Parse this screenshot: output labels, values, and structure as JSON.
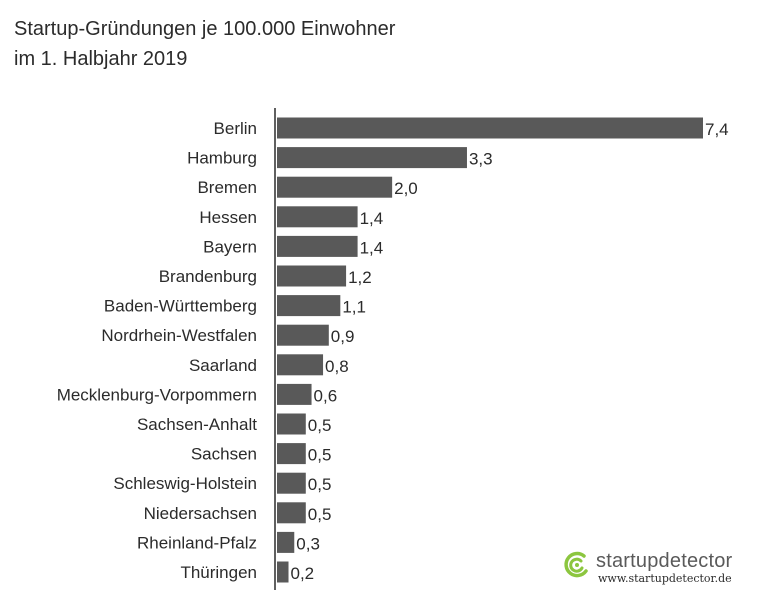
{
  "chart_data": {
    "type": "bar",
    "orientation": "horizontal",
    "title": "Startup-Gründungen je 100.000 Einwohner im 1. Halbjahr 2019",
    "title_lines": [
      "Startup-Gründungen je 100.000 Einwohner",
      "im 1. Halbjahr 2019"
    ],
    "categories": [
      "Berlin",
      "Hamburg",
      "Bremen",
      "Hessen",
      "Bayern",
      "Brandenburg",
      "Baden-Württemberg",
      "Nordrhein-Westfalen",
      "Saarland",
      "Mecklenburg-Vorpommern",
      "Sachsen-Anhalt",
      "Sachsen",
      "Schleswig-Holstein",
      "Niedersachsen",
      "Rheinland-Pfalz",
      "Thüringen"
    ],
    "values": [
      7.4,
      3.3,
      2.0,
      1.4,
      1.4,
      1.2,
      1.1,
      0.9,
      0.8,
      0.6,
      0.5,
      0.5,
      0.5,
      0.5,
      0.3,
      0.2
    ],
    "value_labels": [
      "7,4",
      "3,3",
      "2,0",
      "1,4",
      "1,4",
      "1,2",
      "1,1",
      "0,9",
      "0,8",
      "0,6",
      "0,5",
      "0,5",
      "0,5",
      "0,5",
      "0,3",
      "0,2"
    ],
    "xlabel": "",
    "ylabel": "",
    "xlim": [
      0,
      7.4
    ],
    "grid": false,
    "bar_color": "#595959"
  },
  "branding": {
    "name": "startupdetector",
    "url": "www.startupdetector.de",
    "icon": "startupdetector-logo-icon",
    "accent_color": "#8cc63f"
  }
}
